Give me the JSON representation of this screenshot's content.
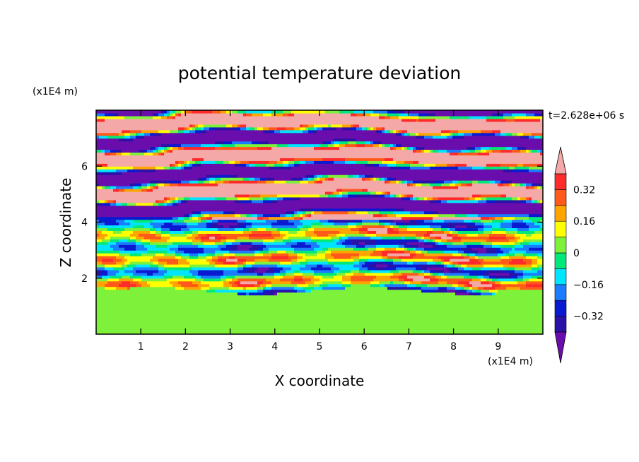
{
  "chart_data": {
    "type": "heatmap",
    "title": "potential temperature deviation",
    "xlabel": "X coordinate",
    "ylabel": "Z coordinate",
    "x_unit": "(x1E4 m)",
    "y_unit": "(x1E4 m)",
    "time_label": "t=2.628e+06 s",
    "xlim": [
      0,
      10
    ],
    "ylim": [
      0,
      8
    ],
    "x_ticks": [
      1,
      2,
      3,
      4,
      5,
      6,
      7,
      8,
      9
    ],
    "y_ticks": [
      2,
      4,
      6
    ],
    "colorbar": {
      "levels": [
        -0.4,
        -0.32,
        -0.24,
        -0.16,
        -0.08,
        0,
        0.08,
        0.16,
        0.24,
        0.32,
        0.4
      ],
      "tick_values": [
        0.32,
        0.16,
        0,
        -0.16,
        -0.32
      ],
      "tick_labels": [
        "0.32",
        "0.16",
        "0",
        "−0.16",
        "−0.32"
      ],
      "colors": [
        "#6a0dad",
        "#2a12a8",
        "#0a1ad0",
        "#1a7cff",
        "#00e5ff",
        "#00e87a",
        "#7ef23a",
        "#ffff00",
        "#ffa500",
        "#ff5a1a",
        "#ff2a2a",
        "#f4a8a8"
      ],
      "extend": "both"
    },
    "description_regions": [
      {
        "z_range": [
          0,
          1.6
        ],
        "dominant_values": [
          0.0,
          0.04
        ]
      },
      {
        "z_range": [
          1.6,
          4.0
        ],
        "dominant_values": [
          -0.4,
          0.4
        ]
      },
      {
        "z_range": [
          4.0,
          8.0
        ],
        "dominant_values": [
          -0.5,
          0.5
        ]
      }
    ]
  }
}
